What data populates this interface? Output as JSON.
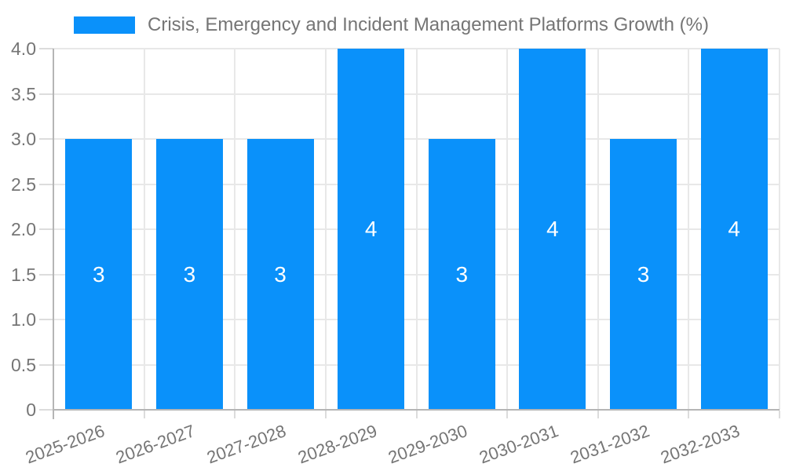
{
  "legend": {
    "swatch_color": "#0a91fa"
  },
  "colors": {
    "bar": "#0a91fa",
    "grid": "#e8e8e8",
    "axis": "#b5b5b5",
    "tick": "#dcdcdc",
    "text": "#757575",
    "bar_label": "#ffffff",
    "background": "#ffffff"
  },
  "chart_data": {
    "type": "bar",
    "title": "Crisis, Emergency and Incident Management Platforms Growth (%)",
    "categories": [
      "2025-2026",
      "2026-2027",
      "2027-2028",
      "2028-2029",
      "2029-2030",
      "2030-2031",
      "2031-2032",
      "2032-2033"
    ],
    "values": [
      3,
      3,
      3,
      4,
      3,
      4,
      3,
      4
    ],
    "xlabel": "",
    "ylabel": "",
    "ylim": [
      0,
      4
    ],
    "ytick_step": 0.5,
    "ytick_labels": [
      "0",
      "0.5",
      "1.0",
      "1.5",
      "2.0",
      "2.5",
      "3.0",
      "3.5",
      "4.0"
    ],
    "bar_value_labels": [
      "3",
      "3",
      "3",
      "4",
      "3",
      "4",
      "3",
      "4"
    ],
    "grid": true,
    "legend_position": "top",
    "xlabel_rotation_deg": -20
  }
}
